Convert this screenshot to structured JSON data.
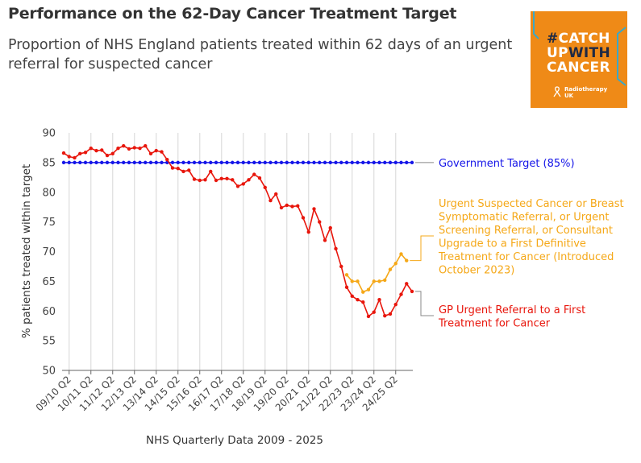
{
  "title": "Performance on the 62-Day Cancer Treatment Target",
  "subtitle": "Proportion of NHS England patients treated within 62 days of an urgent referral for suspected cancer",
  "logo": {
    "line1_hash": "#",
    "line1": "CATCH",
    "line2_a": "UP",
    "line2_b": "WITH",
    "line3": "CANCER",
    "org_line1": "Radiotherapy",
    "org_line2": "UK"
  },
  "colors": {
    "target": "#1515e8",
    "gp": "#e8160c",
    "usc": "#f5a818",
    "grid": "#dddddd",
    "logo_bg": "#ef8a17"
  },
  "chart_data": {
    "type": "line",
    "title": "Performance on the 62-Day Cancer Treatment Target",
    "subtitle": "Proportion of NHS England patients treated within 62 days of an urgent referral for suspected cancer",
    "xlabel": "NHS Quarterly Data 2009 - 2025",
    "ylabel": "% patients treated within target",
    "ylim": [
      50,
      90
    ],
    "yticks": [
      50,
      55,
      60,
      65,
      70,
      75,
      80,
      85,
      90
    ],
    "xticks": [
      "09/10 Q2",
      "10/11 Q2",
      "11/12 Q2",
      "12/13 Q2",
      "13/14 Q2",
      "14/15 Q2",
      "15/16 Q2",
      "16/17 Q2",
      "17/18 Q2",
      "18/19 Q2",
      "19/20 Q2",
      "20/21 Q2",
      "21/22 Q2",
      "22/23 Q2",
      "23/24 Q2",
      "24/25 Q2"
    ],
    "grid": "vertical",
    "series": [
      {
        "name": "Government Target (85%)",
        "color": "#1515e8",
        "start": "09/10 Q1",
        "values": [
          85,
          85,
          85,
          85,
          85,
          85,
          85,
          85,
          85,
          85,
          85,
          85,
          85,
          85,
          85,
          85,
          85,
          85,
          85,
          85,
          85,
          85,
          85,
          85,
          85,
          85,
          85,
          85,
          85,
          85,
          85,
          85,
          85,
          85,
          85,
          85,
          85,
          85,
          85,
          85,
          85,
          85,
          85,
          85,
          85,
          85,
          85,
          85,
          85,
          85,
          85,
          85,
          85,
          85,
          85,
          85,
          85,
          85,
          85,
          85,
          85,
          85,
          85,
          85,
          85
        ]
      },
      {
        "name": "GP Urgent Referral to a First Treatment for Cancer",
        "color": "#e8160c",
        "start": "09/10 Q1",
        "values": [
          86.6,
          86.0,
          85.8,
          86.5,
          86.7,
          87.4,
          87.0,
          87.1,
          86.2,
          86.5,
          87.4,
          87.8,
          87.3,
          87.5,
          87.4,
          87.8,
          86.5,
          87.0,
          86.8,
          85.5,
          84.1,
          84.0,
          83.5,
          83.7,
          82.2,
          82.0,
          82.1,
          83.5,
          82.0,
          82.3,
          82.3,
          82.1,
          81.0,
          81.4,
          82.1,
          83.0,
          82.4,
          80.8,
          78.6,
          79.7,
          77.4,
          77.8,
          77.6,
          77.7,
          75.7,
          73.3,
          77.2,
          75.0,
          71.9,
          74.0,
          70.5,
          67.5,
          64.0,
          62.5,
          61.9,
          61.5,
          59.1,
          59.8,
          61.9,
          59.2,
          59.5,
          61.1,
          62.8,
          64.6,
          63.3
        ]
      },
      {
        "name": "Urgent Suspected Cancer or Breast Symptomatic Referral, or Urgent Screening Referral, or Consultant Upgrade to a First Definitive Treatment for Cancer (Introduced October 2023)",
        "color": "#f5a818",
        "start": "22/23 Q1",
        "values": [
          66.1,
          65.0,
          65.0,
          63.2,
          63.6,
          65.0,
          65.0,
          65.2,
          67.0,
          68.0,
          69.6,
          68.5
        ]
      }
    ],
    "annotations": [
      "Government Target (85%)",
      "Urgent Suspected Cancer or Breast Symptomatic Referral, or Urgent Screening Referral, or Consultant Upgrade to a First Definitive Treatment for Cancer (Introduced October 2023)",
      "GP Urgent Referral to a First Treatment for Cancer"
    ]
  }
}
